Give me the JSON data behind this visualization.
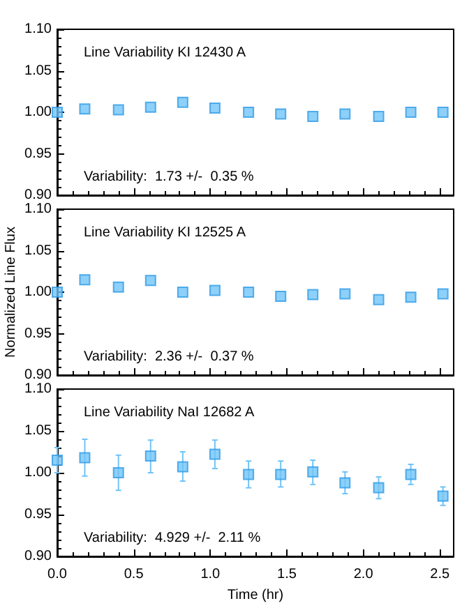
{
  "chart_data": [
    {
      "type": "scatter",
      "title": "Line Variability KI 12430 A",
      "annotations": [
        "Variability:  1.73 +/-  0.35 %"
      ],
      "marker": "square",
      "tick_labels": "y",
      "xlim": [
        0,
        2.59
      ],
      "xticks": [
        0,
        0.5,
        1,
        1.5,
        2,
        2.5
      ],
      "ylim": [
        0.9,
        1.1
      ],
      "yticks": [
        {
          "value": 0.9,
          "label": "0.90"
        },
        {
          "value": 0.95,
          "label": "0.95"
        },
        {
          "value": 1.0,
          "label": "1.00"
        },
        {
          "value": 1.05,
          "label": "1.05"
        },
        {
          "value": 1.1,
          "label": "1.10"
        }
      ],
      "x": [
        0,
        0.18,
        0.4,
        0.61,
        0.82,
        1.03,
        1.25,
        1.46,
        1.67,
        1.88,
        2.1,
        2.31,
        2.52
      ],
      "series": [
        {
          "color": "#70c4f7",
          "values": [
            1.0,
            1.004,
            1.003,
            1.006,
            1.012,
            1.005,
            1.0,
            0.998,
            0.995,
            0.998,
            0.995,
            1.0,
            1.0
          ]
        }
      ]
    },
    {
      "type": "scatter",
      "title": "Line Variability KI 12525 A",
      "annotations": [
        "Variability:  2.36 +/-  0.37 %"
      ],
      "ylabel": "Normalized Line Flux",
      "marker": "square",
      "tick_labels": "y",
      "xlim": [
        0,
        2.59
      ],
      "xticks": [
        0,
        0.5,
        1,
        1.5,
        2,
        2.5
      ],
      "ylim": [
        0.9,
        1.1
      ],
      "yticks": [
        {
          "value": 0.9,
          "label": "0.90"
        },
        {
          "value": 0.95,
          "label": "0.95"
        },
        {
          "value": 1.0,
          "label": "1.00"
        },
        {
          "value": 1.05,
          "label": "1.05"
        },
        {
          "value": 1.1,
          "label": "1.10"
        }
      ],
      "x": [
        0,
        0.18,
        0.4,
        0.61,
        0.82,
        1.03,
        1.25,
        1.46,
        1.67,
        1.88,
        2.1,
        2.31,
        2.52
      ],
      "series": [
        {
          "color": "#70c4f7",
          "values": [
            1.0,
            1.015,
            1.006,
            1.014,
            1.0,
            1.002,
            1.0,
            0.995,
            0.997,
            0.998,
            0.991,
            0.994,
            0.998
          ]
        }
      ]
    },
    {
      "type": "scatter",
      "title": "Line Variability NaI 12682 A",
      "annotations": [
        "Variability:  4.929 +/-  2.11 %"
      ],
      "xlabel": "Time (hr)",
      "marker": "square",
      "xlim": [
        0,
        2.59
      ],
      "xticks": [
        {
          "value": 0,
          "label": "0.0"
        },
        {
          "value": 0.5,
          "label": "0.5"
        },
        {
          "value": 1,
          "label": "1.0"
        },
        {
          "value": 1.5,
          "label": "1.5"
        },
        {
          "value": 2,
          "label": "2.0"
        },
        {
          "value": 2.5,
          "label": "2.5"
        }
      ],
      "ylim": [
        0.9,
        1.1
      ],
      "yticks": [
        {
          "value": 0.9,
          "label": "0.90"
        },
        {
          "value": 0.95,
          "label": "0.95"
        },
        {
          "value": 1.0,
          "label": "1.00"
        },
        {
          "value": 1.05,
          "label": "1.05"
        },
        {
          "value": 1.1,
          "label": "1.10"
        }
      ],
      "x": [
        0,
        0.18,
        0.4,
        0.61,
        0.82,
        1.03,
        1.25,
        1.46,
        1.67,
        1.88,
        2.1,
        2.31,
        2.52
      ],
      "series": [
        {
          "color": "#70c4f7",
          "values": [
            1.015,
            1.018,
            1.0,
            1.02,
            1.007,
            1.022,
            0.998,
            0.998,
            1.001,
            0.988,
            0.982,
            0.998,
            0.972
          ],
          "errors": [
            0.015,
            [
              0.996,
              1.04
            ],
            [
              0.979,
              1.021
            ],
            [
              1.0,
              1.039
            ],
            [
              0.99,
              1.025
            ],
            [
              1.005,
              1.039
            ],
            [
              0.982,
              1.014
            ],
            [
              0.983,
              1.014
            ],
            [
              0.986,
              1.015
            ],
            [
              0.975,
              1.001
            ],
            [
              0.969,
              0.995
            ],
            [
              0.986,
              1.01
            ],
            [
              0.961,
              0.983
            ]
          ]
        }
      ]
    }
  ]
}
